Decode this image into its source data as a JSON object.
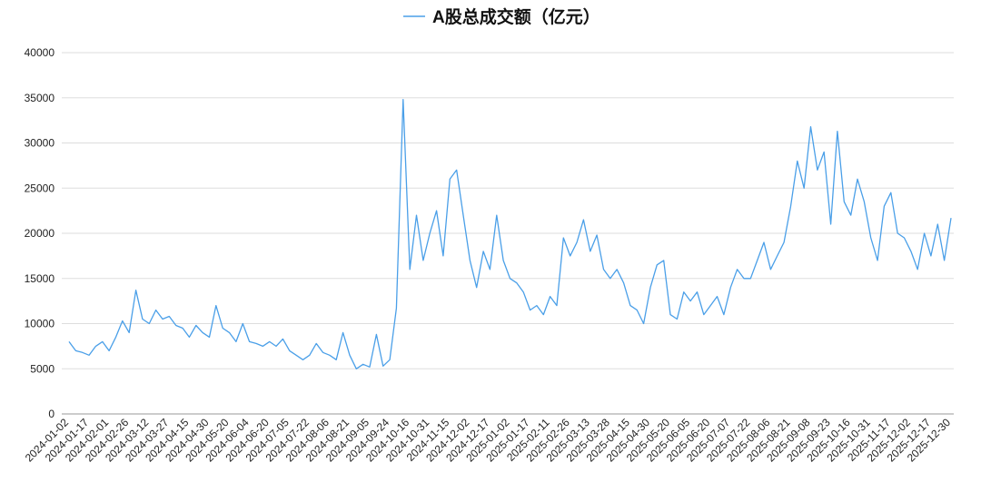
{
  "chart_data": {
    "type": "line",
    "categories": [
      "2024-01-02",
      null,
      null,
      "2024-01-17",
      null,
      null,
      "2024-02-01",
      null,
      null,
      "2024-02-26",
      null,
      null,
      "2024-03-12",
      null,
      null,
      "2024-03-27",
      null,
      null,
      "2024-04-15",
      null,
      null,
      "2024-04-30",
      null,
      null,
      "2024-05-20",
      null,
      null,
      "2024-06-04",
      null,
      null,
      "2024-06-20",
      null,
      null,
      "2024-07-05",
      null,
      null,
      "2024-07-22",
      null,
      null,
      "2024-08-06",
      null,
      null,
      "2024-08-21",
      null,
      null,
      "2024-09-05",
      null,
      null,
      "2024-09-24",
      null,
      null,
      "2024-10-16",
      null,
      null,
      "2024-10-31",
      null,
      null,
      "2024-11-15",
      null,
      null,
      "2024-12-02",
      null,
      null,
      "2024-12-17",
      null,
      null,
      "2025-01-02",
      null,
      null,
      "2025-01-17",
      null,
      null,
      "2025-02-11",
      null,
      null,
      "2025-02-26",
      null,
      null,
      "2025-03-13",
      null,
      null,
      "2025-03-28",
      null,
      null,
      "2025-04-15",
      null,
      null,
      "2025-04-30",
      null,
      null,
      "2025-05-20",
      null,
      null,
      "2025-06-05",
      null,
      null,
      "2025-06-20",
      null,
      null,
      "2025-07-07",
      null,
      null,
      "2025-07-22",
      null,
      null,
      "2025-08-06",
      null,
      null,
      "2025-08-21",
      null,
      null,
      "2025-09-08",
      null,
      null,
      "2025-09-23",
      null,
      null,
      "2025-10-16",
      null,
      null,
      "2025-10-31",
      null,
      null,
      "2025-11-17",
      null,
      null,
      "2025-12-02",
      null,
      null,
      "2025-12-17",
      null,
      null,
      "2025-12-30"
    ],
    "series": [
      {
        "name": "A股总成交额（亿元）",
        "color": "#4a9fe8",
        "values": [
          8000,
          7000,
          6800,
          6500,
          7500,
          8000,
          7000,
          8500,
          10300,
          9000,
          13700,
          10500,
          10000,
          11500,
          10500,
          10800,
          9800,
          9500,
          8500,
          9800,
          9000,
          8500,
          12000,
          9500,
          9000,
          8000,
          10000,
          8000,
          7800,
          7500,
          8000,
          7500,
          8300,
          7000,
          6500,
          6000,
          6500,
          7800,
          6800,
          6500,
          6000,
          9000,
          6500,
          5000,
          5500,
          5200,
          8800,
          5300,
          6000,
          11700,
          34800,
          16000,
          22000,
          17000,
          20000,
          22500,
          17500,
          26000,
          27000,
          22000,
          17000,
          14000,
          18000,
          16000,
          22000,
          17000,
          15000,
          14500,
          13500,
          11500,
          12000,
          11000,
          13000,
          12000,
          19500,
          17500,
          19000,
          21500,
          18000,
          19800,
          16000,
          15000,
          16000,
          14500,
          12000,
          11500,
          10000,
          14000,
          16500,
          17000,
          11000,
          10500,
          13500,
          12500,
          13500,
          11000,
          12000,
          13000,
          11000,
          14000,
          16000,
          15000,
          15000,
          17000,
          19000,
          16000,
          17500,
          19000,
          23000,
          28000,
          25000,
          31800,
          27000,
          29000,
          21000,
          31300,
          23500,
          22000,
          26000,
          23500,
          19500,
          17000,
          23000,
          24500,
          20000,
          19500,
          18000,
          16000,
          20000,
          17500,
          21000,
          17000,
          21700
        ]
      }
    ],
    "ylim": [
      0,
      40000
    ],
    "yticks": [
      0,
      5000,
      10000,
      15000,
      20000,
      25000,
      30000,
      35000,
      40000
    ],
    "grid": true,
    "legend": "top"
  }
}
